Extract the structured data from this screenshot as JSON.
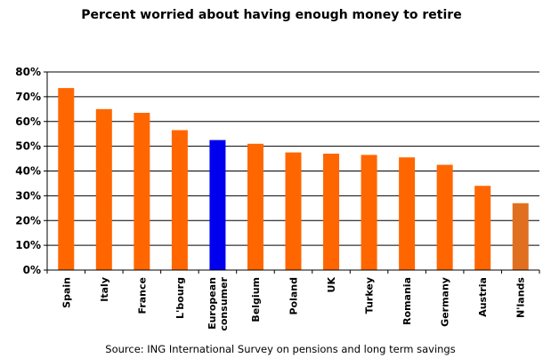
{
  "chart_data": {
    "type": "bar",
    "title": "Percent worried about having enough money to retire",
    "source": "Source: ING International Survey on pensions and long term savings",
    "categories": [
      [
        "Spain"
      ],
      [
        "Italy"
      ],
      [
        "France"
      ],
      [
        "L'bourg"
      ],
      [
        "European",
        "consumer"
      ],
      [
        "Belgium"
      ],
      [
        "Poland"
      ],
      [
        "UK"
      ],
      [
        "Turkey"
      ],
      [
        "Romania"
      ],
      [
        "Germany"
      ],
      [
        "Austria"
      ],
      [
        "N'lands"
      ]
    ],
    "values": [
      73.5,
      65,
      63.5,
      56.5,
      52.5,
      51,
      47.5,
      47,
      46.5,
      45.5,
      42.5,
      34,
      27
    ],
    "bar_colors": [
      "#ff6600",
      "#ff6600",
      "#ff6600",
      "#ff6600",
      "#0000ee",
      "#ff6600",
      "#ff6600",
      "#ff6600",
      "#ff6600",
      "#ff6600",
      "#ff6600",
      "#ff6600",
      "#e07020"
    ],
    "ylim": [
      0,
      80
    ],
    "yticks": [
      0,
      10,
      20,
      30,
      40,
      50,
      60,
      70,
      80
    ],
    "ytick_labels": [
      "0%",
      "10%",
      "20%",
      "30%",
      "40%",
      "50%",
      "60%",
      "70%",
      "80%"
    ],
    "xlabel": "",
    "ylabel": "",
    "grid": true
  }
}
